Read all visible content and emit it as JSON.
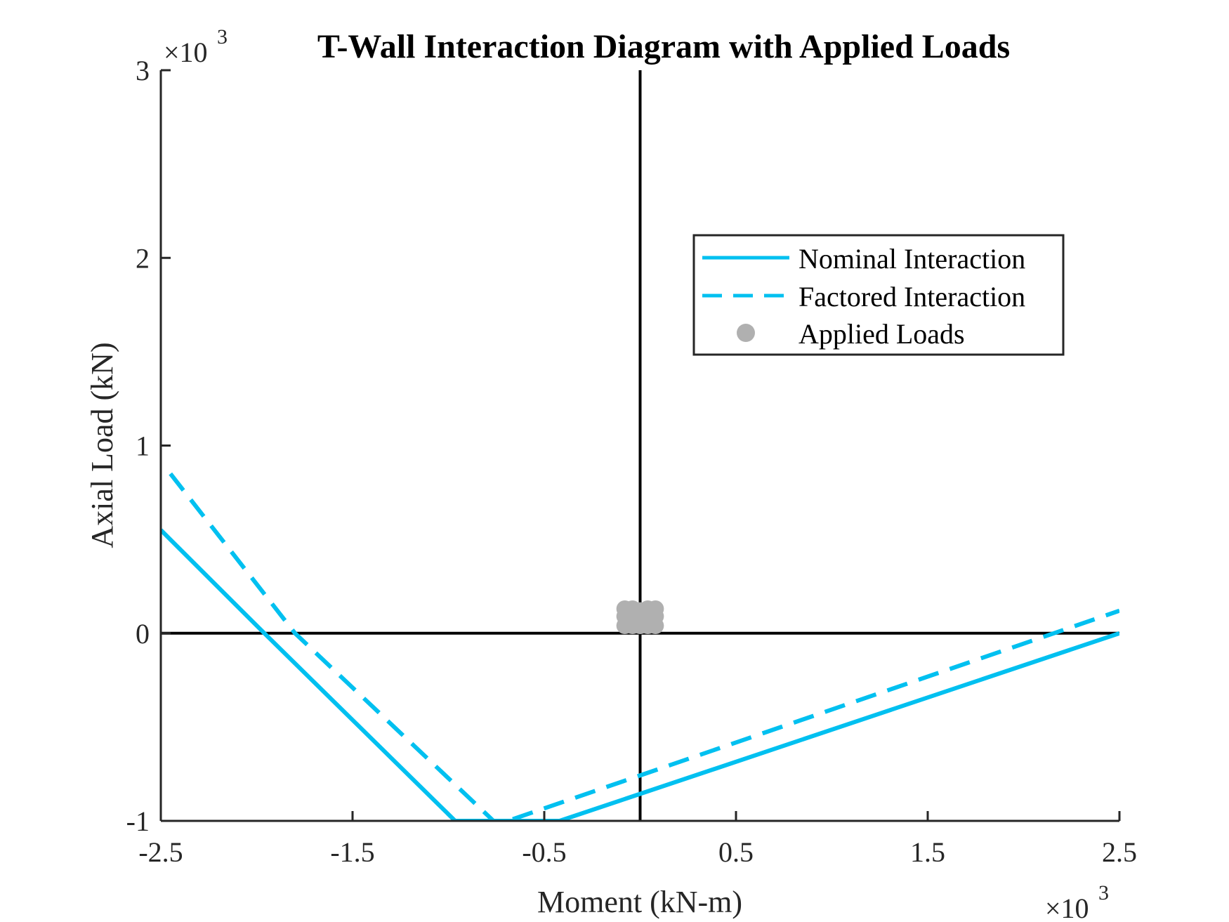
{
  "chart_data": {
    "type": "line",
    "title": "T-Wall Interaction Diagram with Applied Loads",
    "xlabel": "Moment (kN-m)",
    "ylabel": "Axial Load (kN)",
    "x_multiplier_label": "×10",
    "x_multiplier_exp": "3",
    "y_multiplier_label": "×10",
    "y_multiplier_exp": "3",
    "xlim": [
      -2500,
      2500
    ],
    "ylim": [
      -1000,
      3000
    ],
    "x_ticks": [
      -2500,
      -1500,
      -500,
      500,
      1500,
      2500
    ],
    "x_tick_labels": [
      "-2.5",
      "-1.5",
      "-0.5",
      "0.5",
      "1.5",
      "2.5"
    ],
    "y_ticks": [
      -1000,
      0,
      1000,
      2000,
      3000
    ],
    "y_tick_labels": [
      "-1",
      "0",
      "1",
      "2",
      "3"
    ],
    "grid": false,
    "legend_position": "top-right",
    "series": [
      {
        "name": "Nominal Interaction",
        "style": "solid",
        "color": "#00c0f0",
        "points": [
          [
            -2500,
            550
          ],
          [
            -1960,
            0
          ],
          [
            -965,
            -1000
          ],
          [
            -420,
            -1000
          ],
          [
            2500,
            0
          ]
        ]
      },
      {
        "name": "Factored Interaction",
        "style": "dashed",
        "color": "#00c0f0",
        "points": [
          [
            -2450,
            850
          ],
          [
            -1800,
            0
          ],
          [
            -765,
            -1000
          ],
          [
            -690,
            -1000
          ],
          [
            2500,
            120
          ]
        ]
      },
      {
        "name": "Applied Loads",
        "style": "marker",
        "color": "#b0b0b0",
        "points": [
          [
            -80,
            40
          ],
          [
            -80,
            90
          ],
          [
            -80,
            130
          ],
          [
            -40,
            40
          ],
          [
            -40,
            100
          ],
          [
            -40,
            130
          ],
          [
            0,
            40
          ],
          [
            0,
            90
          ],
          [
            0,
            120
          ],
          [
            40,
            40
          ],
          [
            40,
            100
          ],
          [
            40,
            130
          ],
          [
            80,
            40
          ],
          [
            80,
            90
          ],
          [
            80,
            130
          ]
        ]
      }
    ],
    "reference_lines": [
      {
        "axis": "x",
        "value": 0,
        "color": "#000000"
      },
      {
        "axis": "y",
        "value": 0,
        "color": "#000000"
      }
    ]
  }
}
